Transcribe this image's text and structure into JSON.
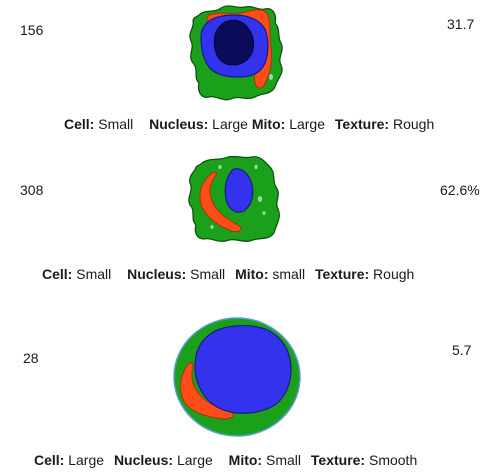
{
  "colors": {
    "cytoplasm": "#1aa01a",
    "cytoplasm_outline": "#0d4d0d",
    "nucleus": "#3333ee",
    "nucleus_outline": "#1a1a80",
    "nucleolus": "#0b0b5c",
    "mitochondria": "#ff4d1a",
    "vesicle": "#9fd69f",
    "smooth_outline": "#5b9bd5"
  },
  "cells": [
    {
      "count": "156",
      "percent": "31.7",
      "caption": {
        "cell_label": "Cell:",
        "cell_value": "Small",
        "nucleus_label": "Nucleus:",
        "nucleus_value": "Large",
        "mito_label": "Mito:",
        "mito_value": "Large",
        "texture_label": "Texture:",
        "texture_value": "Rough"
      }
    },
    {
      "count": "308",
      "percent": "62.6%",
      "caption": {
        "cell_label": "Cell:",
        "cell_value": "Small",
        "nucleus_label": "Nucleus:",
        "nucleus_value": "Small",
        "mito_label": "Mito:",
        "mito_value": "small",
        "texture_label": "Texture:",
        "texture_value": "Rough"
      }
    },
    {
      "count": "28",
      "percent": "5.7",
      "caption": {
        "cell_label": "Cell:",
        "cell_value": "Large",
        "nucleus_label": "Nucleus:",
        "nucleus_value": "Large",
        "mito_label": "Mito:",
        "mito_value": "Small",
        "texture_label": "Texture:",
        "texture_value": "Smooth"
      }
    }
  ]
}
